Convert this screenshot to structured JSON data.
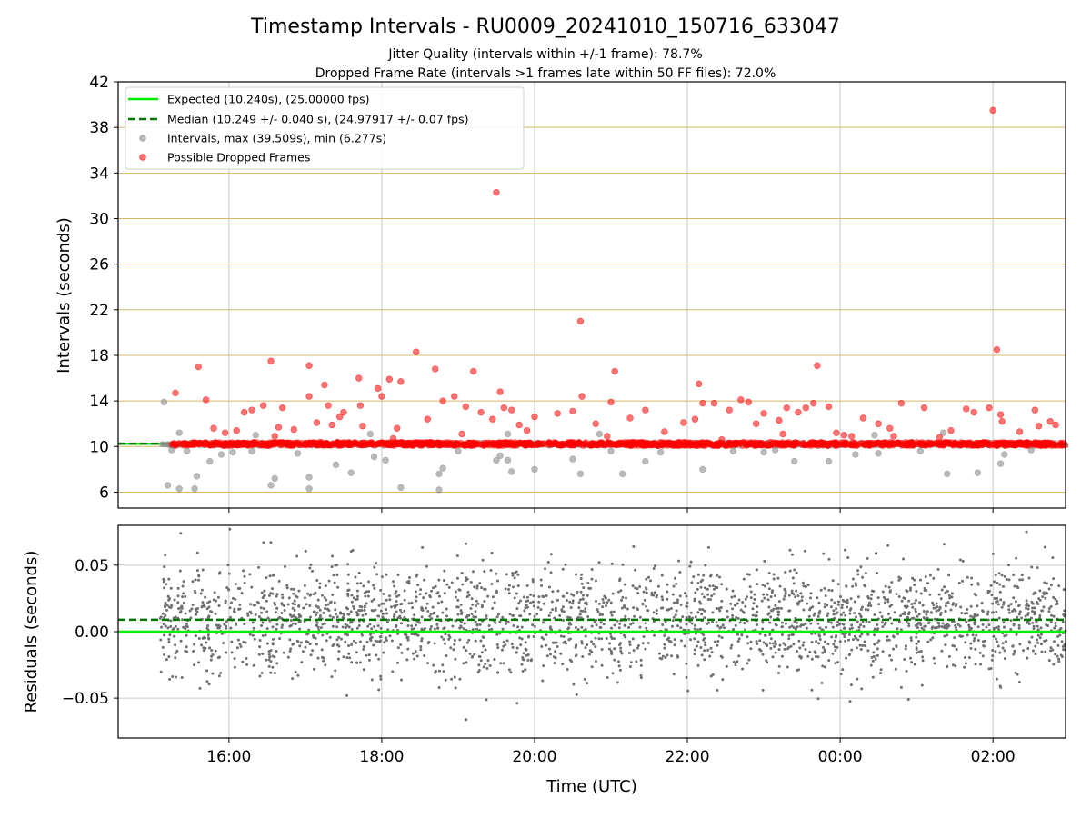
{
  "chart_data": [
    {
      "type": "scatter",
      "title": "Timestamp Intervals - RU0009_20241010_150716_633047",
      "subtitle_lines": [
        "Jitter Quality (intervals within +/-1 frame): 78.7%",
        "Dropped Frame Rate (intervals >1 frames late within 50 FF files): 72.0%"
      ],
      "xlabel": "",
      "ylabel": "Intervals (seconds)",
      "xlim_hours": [
        14.55,
        26.95
      ],
      "ylim": [
        4.6,
        42
      ],
      "yticks": [
        6,
        10,
        14,
        18,
        22,
        26,
        30,
        34,
        38,
        42
      ],
      "ytick_labels": [
        "6",
        "10",
        "14",
        "18",
        "22",
        "26",
        "30",
        "34",
        "38",
        "42"
      ],
      "grid": true,
      "legend_placement": "top-left",
      "legend": [
        "Expected (10.240s), (25.00000 fps)",
        "Median (10.249 +/- 0.040 s), (24.97917 +/- 0.07 fps)",
        "Intervals, max (39.509s), min (6.277s)",
        "Possible Dropped Frames"
      ],
      "expected_interval": 10.24,
      "median_interval": 10.249,
      "colors": {
        "expected": "#00ee00",
        "median": "#007700",
        "intervals": "#8c8c8c",
        "dropped": "#ff0000",
        "hgrid": "#d4b86a",
        "vgrid": "#c8c8c8"
      },
      "series": [
        {
          "name": "Possible Dropped Frames",
          "points": [
            [
              15.3,
              14.7
            ],
            [
              15.6,
              17.0
            ],
            [
              15.7,
              14.1
            ],
            [
              15.8,
              11.6
            ],
            [
              15.95,
              11.2
            ],
            [
              16.1,
              11.4
            ],
            [
              16.2,
              13.0
            ],
            [
              16.3,
              13.2
            ],
            [
              16.45,
              13.6
            ],
            [
              16.55,
              17.5
            ],
            [
              16.65,
              11.7
            ],
            [
              16.7,
              13.4
            ],
            [
              16.85,
              11.5
            ],
            [
              17.05,
              17.1
            ],
            [
              17.05,
              14.4
            ],
            [
              17.15,
              12.1
            ],
            [
              17.25,
              15.4
            ],
            [
              17.3,
              13.6
            ],
            [
              17.35,
              11.9
            ],
            [
              17.45,
              12.6
            ],
            [
              17.5,
              13.0
            ],
            [
              17.7,
              16.0
            ],
            [
              17.72,
              13.6
            ],
            [
              17.75,
              11.8
            ],
            [
              17.95,
              15.1
            ],
            [
              18.0,
              14.4
            ],
            [
              18.1,
              15.9
            ],
            [
              18.25,
              15.7
            ],
            [
              18.2,
              11.6
            ],
            [
              18.45,
              18.3
            ],
            [
              18.6,
              12.4
            ],
            [
              18.7,
              16.8
            ],
            [
              18.8,
              14.0
            ],
            [
              18.95,
              14.4
            ],
            [
              19.1,
              13.5
            ],
            [
              19.2,
              16.6
            ],
            [
              19.3,
              13.0
            ],
            [
              19.45,
              12.4
            ],
            [
              19.5,
              32.3
            ],
            [
              19.55,
              14.8
            ],
            [
              19.6,
              13.4
            ],
            [
              19.7,
              13.2
            ],
            [
              19.8,
              11.9
            ],
            [
              19.9,
              11.4
            ],
            [
              20.0,
              12.6
            ],
            [
              20.3,
              12.9
            ],
            [
              20.5,
              13.1
            ],
            [
              20.6,
              21.0
            ],
            [
              20.62,
              14.4
            ],
            [
              20.8,
              12.0
            ],
            [
              21.0,
              13.9
            ],
            [
              21.05,
              16.6
            ],
            [
              21.25,
              12.5
            ],
            [
              21.45,
              13.2
            ],
            [
              21.7,
              11.3
            ],
            [
              21.95,
              12.1
            ],
            [
              22.1,
              12.4
            ],
            [
              22.15,
              15.5
            ],
            [
              22.2,
              13.8
            ],
            [
              22.35,
              13.8
            ],
            [
              22.55,
              13.2
            ],
            [
              22.7,
              14.1
            ],
            [
              22.8,
              13.9
            ],
            [
              22.9,
              12.0
            ],
            [
              23.0,
              12.9
            ],
            [
              23.2,
              12.3
            ],
            [
              23.3,
              13.4
            ],
            [
              23.45,
              13.0
            ],
            [
              23.55,
              13.4
            ],
            [
              23.65,
              13.8
            ],
            [
              23.7,
              17.1
            ],
            [
              23.85,
              13.5
            ],
            [
              23.95,
              11.2
            ],
            [
              24.05,
              11.0
            ],
            [
              24.15,
              10.9
            ],
            [
              24.3,
              12.5
            ],
            [
              24.5,
              12.0
            ],
            [
              24.65,
              11.6
            ],
            [
              24.8,
              13.8
            ],
            [
              25.1,
              13.4
            ],
            [
              25.45,
              11.4
            ],
            [
              25.65,
              13.3
            ],
            [
              25.75,
              13.0
            ],
            [
              25.95,
              13.4
            ],
            [
              26.05,
              18.5
            ],
            [
              26.0,
              39.5
            ],
            [
              26.1,
              12.8
            ],
            [
              26.12,
              12.2
            ],
            [
              26.35,
              11.3
            ],
            [
              26.55,
              13.2
            ],
            [
              26.6,
              11.8
            ],
            [
              26.75,
              12.2
            ],
            [
              26.82,
              11.9
            ],
            [
              16.6,
              10.9
            ],
            [
              18.15,
              10.7
            ],
            [
              19.05,
              11.1
            ],
            [
              20.95,
              10.9
            ],
            [
              22.45,
              10.6
            ],
            [
              23.25,
              11.1
            ],
            [
              24.7,
              10.9
            ],
            [
              25.3,
              10.8
            ]
          ]
        },
        {
          "name": "Intervals, max (39.509s), min (6.277s)",
          "points": [
            [
              15.15,
              13.9
            ],
            [
              15.2,
              6.6
            ],
            [
              15.25,
              9.7
            ],
            [
              15.35,
              6.3
            ],
            [
              15.45,
              9.6
            ],
            [
              15.55,
              6.3
            ],
            [
              15.58,
              7.4
            ],
            [
              15.75,
              8.7
            ],
            [
              15.9,
              9.3
            ],
            [
              16.05,
              9.5
            ],
            [
              16.3,
              9.6
            ],
            [
              16.55,
              6.6
            ],
            [
              16.6,
              7.2
            ],
            [
              16.9,
              9.4
            ],
            [
              17.05,
              6.3
            ],
            [
              17.05,
              7.3
            ],
            [
              17.4,
              8.4
            ],
            [
              17.6,
              7.7
            ],
            [
              17.9,
              9.1
            ],
            [
              18.05,
              8.8
            ],
            [
              18.25,
              6.4
            ],
            [
              18.75,
              6.2
            ],
            [
              18.75,
              7.6
            ],
            [
              18.8,
              8.1
            ],
            [
              19.0,
              9.6
            ],
            [
              19.5,
              8.8
            ],
            [
              19.55,
              9.2
            ],
            [
              19.65,
              8.8
            ],
            [
              19.7,
              7.8
            ],
            [
              20.0,
              8.0
            ],
            [
              20.5,
              8.9
            ],
            [
              20.6,
              7.6
            ],
            [
              21.0,
              9.6
            ],
            [
              21.15,
              7.6
            ],
            [
              21.45,
              8.7
            ],
            [
              21.65,
              9.5
            ],
            [
              22.2,
              8.0
            ],
            [
              22.6,
              9.6
            ],
            [
              23.0,
              9.5
            ],
            [
              23.15,
              9.7
            ],
            [
              23.4,
              8.7
            ],
            [
              23.85,
              8.7
            ],
            [
              24.2,
              9.3
            ],
            [
              24.5,
              9.4
            ],
            [
              25.05,
              9.6
            ],
            [
              25.4,
              7.6
            ],
            [
              25.8,
              7.7
            ],
            [
              26.1,
              8.5
            ],
            [
              26.15,
              9.3
            ],
            [
              26.5,
              9.7
            ],
            [
              15.35,
              11.2
            ],
            [
              16.35,
              11.0
            ],
            [
              17.85,
              11.1
            ],
            [
              19.65,
              11.1
            ],
            [
              20.85,
              11.1
            ],
            [
              24.45,
              11.0
            ],
            [
              25.35,
              11.2
            ]
          ]
        }
      ]
    },
    {
      "type": "scatter",
      "title": "",
      "xlabel": "Time (UTC)",
      "ylabel": "Residuals (seconds)",
      "xlim_hours": [
        14.55,
        26.95
      ],
      "ylim": [
        -0.08,
        0.08
      ],
      "yticks": [
        -0.05,
        0.0,
        0.05
      ],
      "ytick_labels": [
        "−0.05",
        "0.00",
        "0.05"
      ],
      "xticks_hours": [
        16,
        18,
        20,
        22,
        24,
        26
      ],
      "xtick_labels": [
        "16:00",
        "18:00",
        "20:00",
        "22:00",
        "00:00",
        "02:00"
      ],
      "grid": true,
      "expected_residual": 0.0,
      "median_residual": 0.009,
      "data_span_hours": [
        15.1,
        26.95
      ],
      "residual_spread": 0.02,
      "colors": {
        "points": "#707070",
        "expected": "#00ee00",
        "median": "#007700",
        "grid": "#c8c8c8"
      }
    }
  ]
}
